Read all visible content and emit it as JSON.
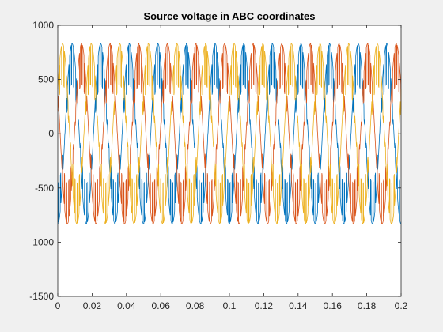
{
  "figure": {
    "background": "#f0f0f0",
    "axes_background": "#ffffff"
  },
  "chart_data": {
    "type": "line",
    "title": "Source voltage in ABC coordinates",
    "xlabel": "",
    "ylabel": "",
    "xlim": [
      0,
      0.2
    ],
    "ylim": [
      -1500,
      1000
    ],
    "xticks": [
      0,
      0.02,
      0.04,
      0.06,
      0.08,
      0.1,
      0.12,
      0.14,
      0.16,
      0.18,
      0.2
    ],
    "xtick_labels": [
      "0",
      "0.02",
      "0.04",
      "0.06",
      "0.08",
      "0.1",
      "0.12",
      "0.14",
      "0.16",
      "0.18",
      "0.2"
    ],
    "yticks": [
      -1500,
      -1000,
      -500,
      0,
      500,
      1000
    ],
    "ytick_labels": [
      "-1500",
      "-1000",
      "-500",
      "0",
      "500",
      "1000"
    ],
    "grid": false,
    "legend": "none",
    "series": [
      {
        "color": "#0072bd",
        "amplitude": 830,
        "frequency_hz": 60,
        "phase_deg": -90,
        "notch_depth": 0.45
      },
      {
        "color": "#d95319",
        "amplitude": 830,
        "frequency_hz": 60,
        "phase_deg": 150,
        "notch_depth": 0.45
      },
      {
        "color": "#edb120",
        "amplitude": 830,
        "frequency_hz": 60,
        "phase_deg": 30,
        "notch_depth": 0.45
      }
    ]
  }
}
